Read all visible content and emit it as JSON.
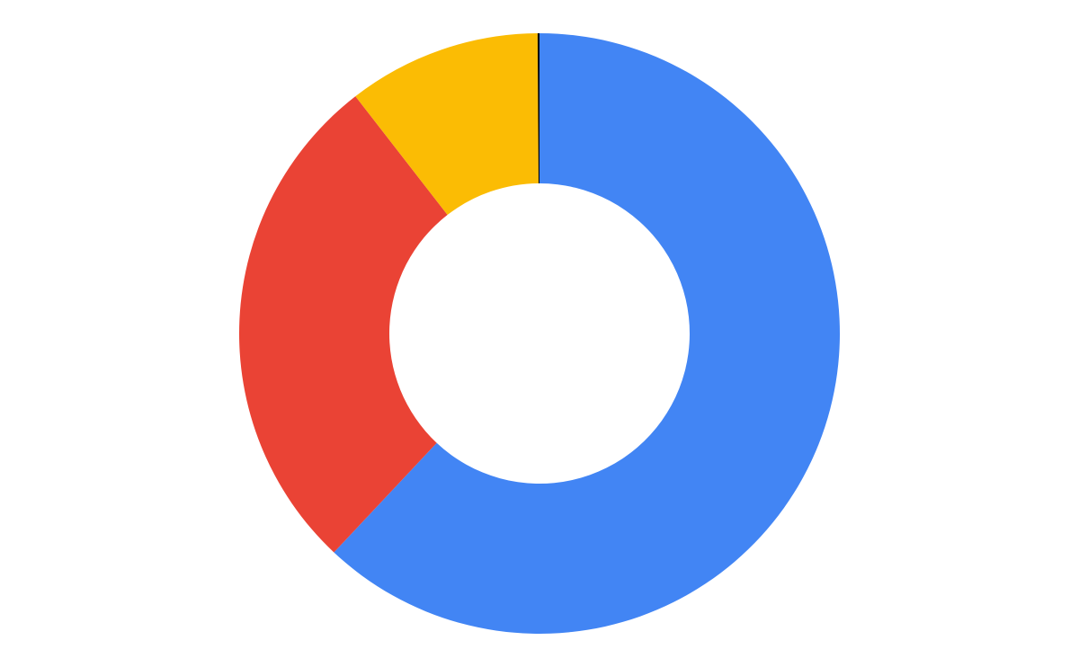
{
  "chart_data": {
    "type": "donut",
    "values": [
      62,
      27.5,
      10.4,
      0.1
    ],
    "colors": [
      "#4285f4",
      "#ea4335",
      "#fbbc04",
      "#000000"
    ]
  }
}
